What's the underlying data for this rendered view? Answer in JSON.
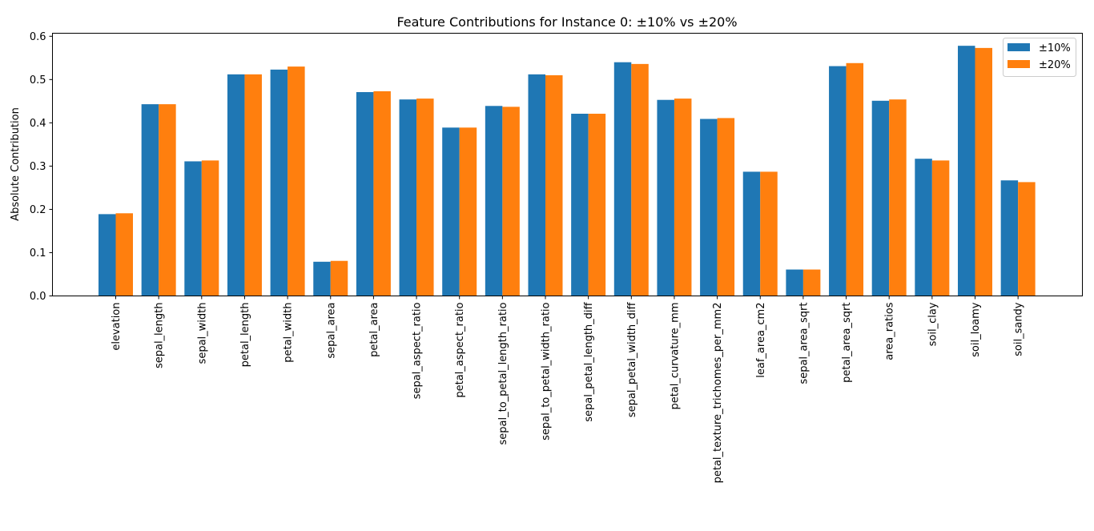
{
  "chart_data": {
    "type": "bar",
    "title": "Feature Contributions for Instance 0: ±10% vs ±20%",
    "xlabel": "",
    "ylabel": "Absolute Contribution",
    "ylim": [
      0,
      0.607
    ],
    "yticks": [
      "0.0",
      "0.1",
      "0.2",
      "0.3",
      "0.4",
      "0.5",
      "0.6"
    ],
    "grid": false,
    "legend_position": "top-right",
    "categories": [
      "elevation",
      "sepal_length",
      "sepal_width",
      "petal_length",
      "petal_width",
      "sepal_area",
      "petal_area",
      "sepal_aspect_ratio",
      "petal_aspect_ratio",
      "sepal_to_petal_length_ratio",
      "sepal_to_petal_width_ratio",
      "sepal_petal_length_diff",
      "sepal_petal_width_diff",
      "petal_curvature_mm",
      "petal_texture_trichomes_per_mm2",
      "leaf_area_cm2",
      "sepal_area_sqrt",
      "petal_area_sqrt",
      "area_ratios",
      "soil_clay",
      "soil_loamy",
      "soil_sandy"
    ],
    "series": [
      {
        "name": "±10%",
        "color": "#1f77b4",
        "values": [
          0.189,
          0.443,
          0.311,
          0.512,
          0.523,
          0.079,
          0.471,
          0.454,
          0.389,
          0.439,
          0.512,
          0.421,
          0.54,
          0.453,
          0.409,
          0.287,
          0.061,
          0.531,
          0.451,
          0.317,
          0.578,
          0.267
        ]
      },
      {
        "name": "±20%",
        "color": "#ff7f0e",
        "values": [
          0.191,
          0.443,
          0.313,
          0.512,
          0.53,
          0.081,
          0.473,
          0.456,
          0.389,
          0.437,
          0.51,
          0.421,
          0.536,
          0.456,
          0.411,
          0.287,
          0.061,
          0.538,
          0.454,
          0.313,
          0.573,
          0.263
        ]
      }
    ]
  }
}
